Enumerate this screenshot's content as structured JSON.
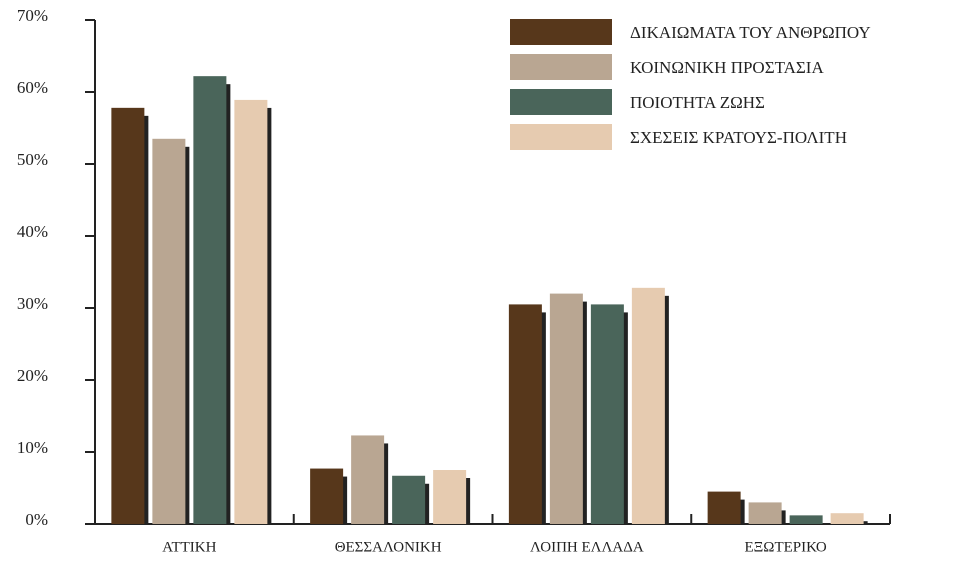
{
  "chart_data": {
    "type": "bar",
    "categories": [
      "ΑΤΤΙΚΗ",
      "ΘΕΣΣΑΛΟΝΙΚΗ",
      "ΛΟΙΠΗ ΕΛΛΑΔΑ",
      "ΕΞΩΤΕΡΙΚΟ"
    ],
    "series": [
      {
        "name": "ΔΙΚΑΙΩΜΑΤΑ ΤΟΥ ΑΝΘΡΩΠΟΥ",
        "color": "#57371b",
        "values": [
          57.8,
          7.7,
          30.5,
          4.5
        ]
      },
      {
        "name": "ΚΟΙΝΩΝΙΚΗ ΠΡΟΣΤΑΣΙΑ",
        "color": "#b9a692",
        "values": [
          53.5,
          12.3,
          32.0,
          3.0
        ]
      },
      {
        "name": "ΠΟΙΟΤΗΤΑ ΖΩΗΣ",
        "color": "#4a655a",
        "values": [
          62.2,
          6.7,
          30.5,
          1.2
        ]
      },
      {
        "name": "ΣΧΕΣΕΙΣ ΚΡΑΤΟΥΣ-ΠΟΛΙΤΗ",
        "color": "#e6cbb0",
        "values": [
          58.9,
          7.5,
          32.8,
          1.5
        ]
      }
    ],
    "ylim": [
      0,
      70
    ],
    "yticks": [
      {
        "value": 0,
        "label": "0%"
      },
      {
        "value": 10,
        "label": "10%"
      },
      {
        "value": 20,
        "label": "20%"
      },
      {
        "value": 30,
        "label": "30%"
      },
      {
        "value": 40,
        "label": "40%"
      },
      {
        "value": 50,
        "label": "50%"
      },
      {
        "value": 60,
        "label": "60%"
      },
      {
        "value": 70,
        "label": "70%"
      }
    ],
    "legend": "top-right",
    "grid": false
  }
}
